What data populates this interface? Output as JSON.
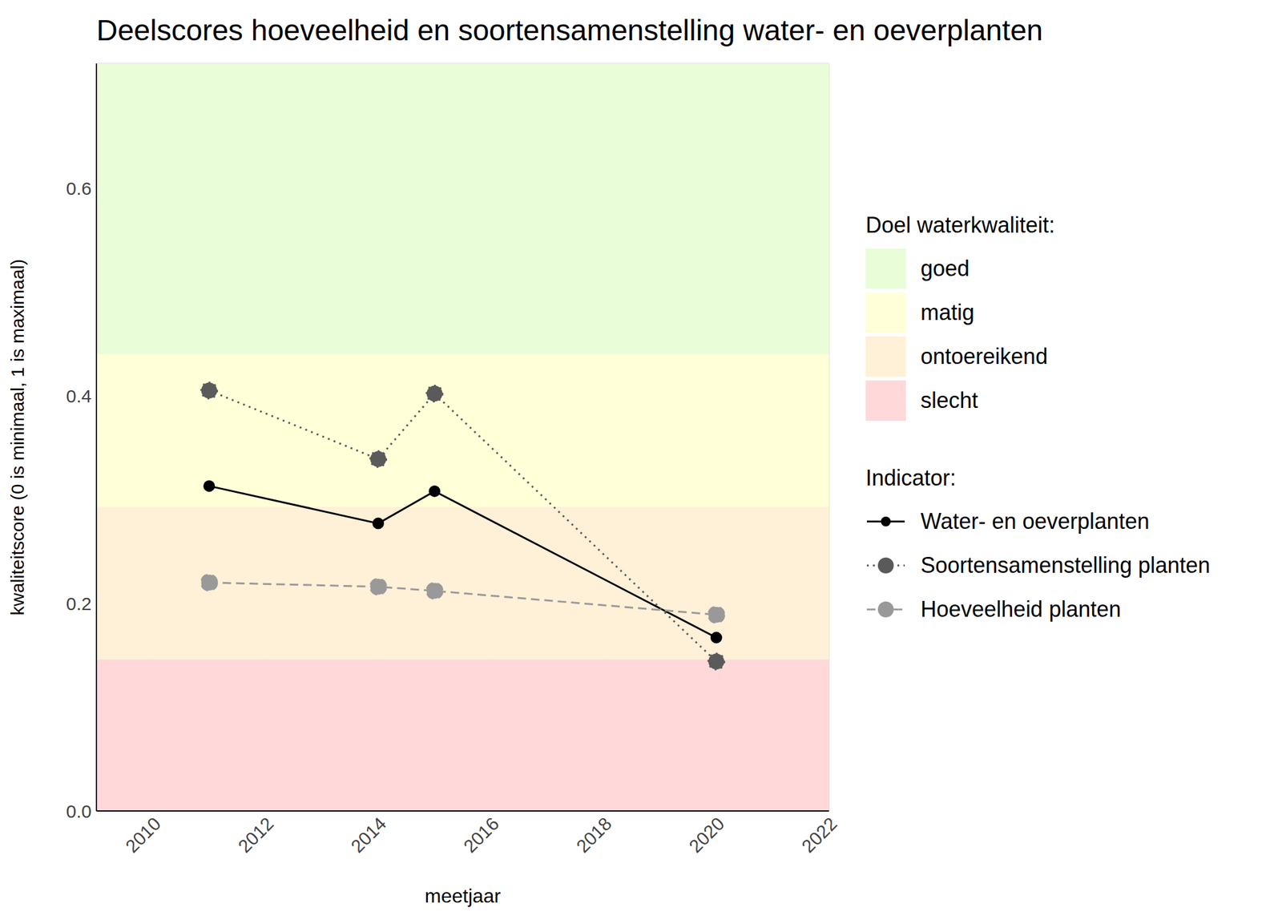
{
  "chart_data": {
    "type": "line",
    "title": "Deelscores hoeveelheid en soortensamenstelling water- en oeverplanten",
    "x_label": "meetjaar",
    "y_label": "kwaliteitscore (0 is minimaal, 1 is maximaal)",
    "x": [
      2011,
      2014,
      2015,
      2020
    ],
    "xlim": [
      2009,
      2022
    ],
    "xticks": [
      2010,
      2012,
      2014,
      2016,
      2018,
      2020,
      2022
    ],
    "ylim": [
      0,
      0.72
    ],
    "yticks": [
      {
        "value": 0,
        "label": "0.0"
      },
      0.2,
      0.4,
      0.6
    ],
    "grid": true,
    "bands_title": "Doel waterkwaliteit:",
    "bands": [
      {
        "name": "goed",
        "color": "#e8fdd8",
        "from": 0.44,
        "to": 0.72
      },
      {
        "name": "matig",
        "color": "#ffffd8",
        "from": 0.293,
        "to": 0.44
      },
      {
        "name": "ontoereikend",
        "color": "#fff0d8",
        "from": 0.146,
        "to": 0.293
      },
      {
        "name": "slecht",
        "color": "#ffd9d9",
        "from": 0,
        "to": 0.146
      }
    ],
    "series_title": "Indicator:",
    "series": [
      {
        "name": "Water- en oeverplanten",
        "color": "#000000",
        "line_style": "solid",
        "marker": "circle",
        "values": [
          0.313,
          0.277,
          0.308,
          0.167
        ]
      },
      {
        "name": "Soortensamenstelling planten",
        "color": "#5a5a5a",
        "line_style": "dotted",
        "marker": "circle",
        "values": [
          0.405,
          0.339,
          0.402,
          0.144
        ]
      },
      {
        "name": "Hoeveelheid planten",
        "color": "#999999",
        "line_style": "dashed",
        "marker": "circle",
        "values": [
          0.22,
          0.216,
          0.212,
          0.189
        ]
      }
    ]
  }
}
